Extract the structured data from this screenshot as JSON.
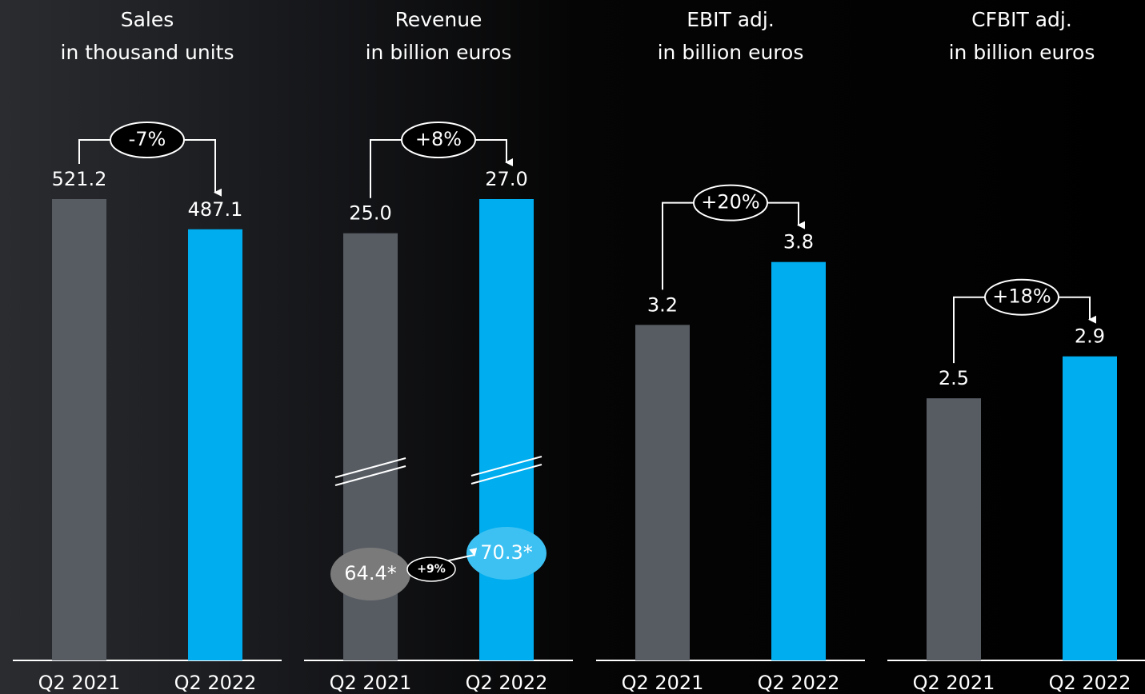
{
  "chart_data": [
    {
      "type": "bar",
      "title": "Sales",
      "subtitle": "in thousand units",
      "categories": [
        "Q2 2021",
        "Q2 2022"
      ],
      "values": [
        521.2,
        487.1
      ],
      "colors": [
        "#575c63",
        "#00adef"
      ],
      "annotation": "-7%"
    },
    {
      "type": "bar",
      "title": "Revenue",
      "subtitle": "in billion euros",
      "categories": [
        "Q2 2021",
        "Q2 2022"
      ],
      "values": [
        25.0,
        27.0
      ],
      "value_labels": [
        "25.0",
        "27.0"
      ],
      "colors": [
        "#575c63",
        "#00adef"
      ],
      "annotation": "+8%",
      "secondary": {
        "values": [
          64.4,
          70.3
        ],
        "value_labels": [
          "64.4*",
          "70.3*"
        ],
        "colors": [
          "#7a7a7a",
          "#3cc1f2"
        ],
        "annotation": "+9%"
      }
    },
    {
      "type": "bar",
      "title": "EBIT adj.",
      "subtitle": "in billion euros",
      "categories": [
        "Q2 2021",
        "Q2 2022"
      ],
      "values": [
        3.2,
        3.8
      ],
      "colors": [
        "#575c63",
        "#00adef"
      ],
      "annotation": "+20%",
      "ylim": [
        0,
        4.4
      ]
    },
    {
      "type": "bar",
      "title": "CFBIT adj.",
      "subtitle": "in billion euros",
      "categories": [
        "Q2 2021",
        "Q2 2022"
      ],
      "values": [
        2.5,
        2.9
      ],
      "colors": [
        "#575c63",
        "#00adef"
      ],
      "annotation": "+18%",
      "ylim": [
        0,
        4.4
      ]
    }
  ]
}
